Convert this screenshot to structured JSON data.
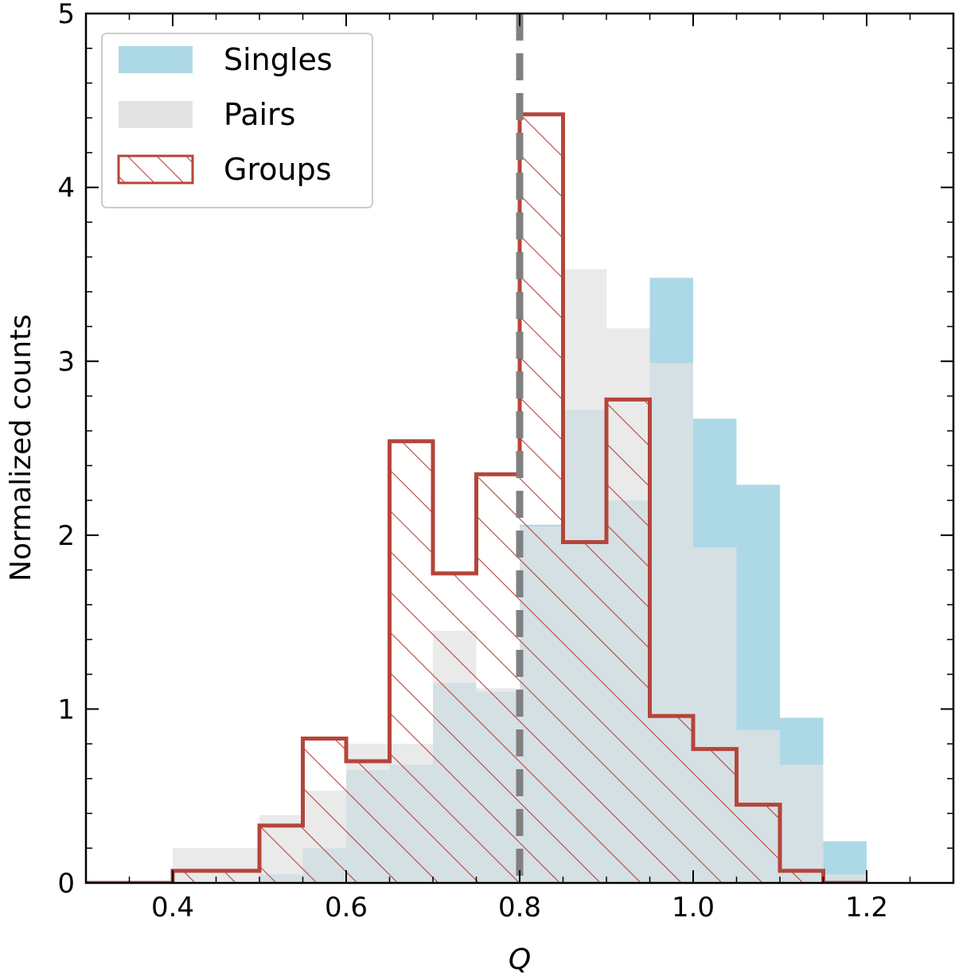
{
  "chart_data": {
    "type": "histogram",
    "xlabel": "Q",
    "ylabel": "Normalized counts",
    "xlim": [
      0.3,
      1.3
    ],
    "ylim": [
      0,
      5
    ],
    "xticks": [
      0.4,
      0.6,
      0.8,
      1.0,
      1.2
    ],
    "xtick_labels": [
      "0.4",
      "0.6",
      "0.8",
      "1.0",
      "1.2"
    ],
    "yticks": [
      0,
      1,
      2,
      3,
      4,
      5
    ],
    "ytick_labels": [
      "0",
      "1",
      "2",
      "3",
      "4",
      "5"
    ],
    "reference_line": {
      "x": 0.8,
      "style": "dashed",
      "color": "#808080"
    },
    "bin_edges": [
      0.4,
      0.45,
      0.5,
      0.55,
      0.6,
      0.65,
      0.7,
      0.75,
      0.8,
      0.85,
      0.9,
      0.95,
      1.0,
      1.05,
      1.1,
      1.15,
      1.2
    ],
    "series": [
      {
        "name": "Singles",
        "style": "filled",
        "color": "#add8e6",
        "values": [
          0.0,
          0.0,
          0.05,
          0.2,
          0.65,
          0.68,
          1.15,
          1.1,
          2.06,
          2.72,
          2.2,
          3.48,
          2.67,
          2.29,
          0.95,
          0.24,
          0.14
        ]
      },
      {
        "name": "Pairs",
        "style": "filled",
        "color": "#e3e3e3",
        "values": [
          0.2,
          0.2,
          0.39,
          0.53,
          0.8,
          0.8,
          1.45,
          1.12,
          2.05,
          3.53,
          3.19,
          2.99,
          1.93,
          0.88,
          0.68,
          0.05,
          0.0
        ]
      },
      {
        "name": "Groups",
        "style": "hatched-step",
        "color": "#b5453a",
        "values": [
          0.07,
          0.07,
          0.33,
          0.83,
          0.7,
          2.54,
          1.78,
          2.35,
          4.42,
          1.96,
          2.78,
          0.96,
          0.77,
          0.45,
          0.07,
          0.0,
          0.0
        ]
      }
    ],
    "legend": {
      "position": "top-left",
      "entries": [
        "Singles",
        "Pairs",
        "Groups"
      ]
    }
  }
}
